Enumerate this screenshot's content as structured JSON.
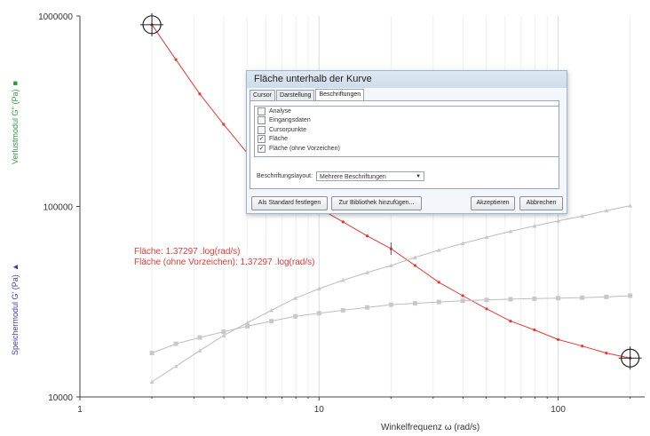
{
  "chart_data": {
    "type": "line",
    "x_scale": "log",
    "y_scale": "log",
    "xlim": [
      1,
      230
    ],
    "ylim": [
      10000,
      1000000
    ],
    "x_ticks": [
      "1",
      "10",
      "100"
    ],
    "y_ticks": [
      "1000000",
      "100000",
      "10000"
    ],
    "xlabel": "Winkelfrequenz  ω  (rad/s)",
    "ylabel_left_top": "Verlustmodul  G''  (Pa)",
    "ylabel_left_bottom": "Speichermodul  G'  (Pa)",
    "grid": "vertical",
    "series": [
      {
        "color": "#e53935",
        "x": [
          2,
          2.52,
          3.17,
          3.99,
          5.02,
          6.32,
          7.96,
          10,
          12.6,
          15.9,
          20,
          25.2,
          31.7,
          39.9,
          50.2,
          63.2,
          79.6,
          100,
          126,
          159,
          200
        ],
        "y": [
          900000,
          590000,
          390000,
          270000,
          190000,
          148000,
          118000,
          98000,
          83000,
          70000,
          60000,
          49000,
          40000,
          34000,
          29000,
          25000,
          22500,
          20000,
          18500,
          17000,
          16000
        ]
      },
      {
        "color": "#bdbdbd",
        "x": [
          2,
          2.52,
          3.17,
          3.99,
          5.02,
          6.32,
          7.96,
          10,
          12.6,
          15.9,
          20,
          25.2,
          31.7,
          39.9,
          50.2,
          63.2,
          79.6,
          100,
          126,
          159,
          200
        ],
        "y": [
          12000,
          14500,
          17500,
          21000,
          24500,
          28500,
          33000,
          37000,
          41000,
          45000,
          49000,
          54000,
          59000,
          64000,
          69000,
          74000,
          79000,
          84000,
          89000,
          95000,
          101000
        ]
      },
      {
        "color": "#bdbdbd",
        "x": [
          2,
          2.52,
          3.17,
          3.99,
          5.02,
          6.32,
          7.96,
          10,
          12.6,
          15.9,
          20,
          25.2,
          31.7,
          39.9,
          50.2,
          63.2,
          79.6,
          100,
          126,
          159,
          200
        ],
        "y": [
          17000,
          19000,
          20500,
          22000,
          23500,
          25000,
          26500,
          27500,
          28500,
          29500,
          30500,
          31000,
          31500,
          32000,
          32300,
          32600,
          32800,
          33000,
          33200,
          33500,
          34000
        ]
      }
    ],
    "cursors": [
      {
        "x": 2,
        "y": 900000
      },
      {
        "x": 200,
        "y": 16000
      }
    ],
    "annotations": [
      "Fläche: 1.37297 .log(rad/s)",
      "Fläche (ohne Vorzeichen): 1.37297 .log(rad/s)"
    ]
  },
  "labels": {
    "verlust_symbol": "■",
    "speicher_symbol": "▲",
    "verlust_color": "#2e9a3a",
    "speicher_color": "#3b3fa8"
  },
  "dialog": {
    "title": "Fläche unterhalb der Kurve",
    "tabs": [
      "Cursor",
      "Darstellung",
      "Beschriftungen"
    ],
    "active_tab": "Beschriftungen",
    "checkboxes": [
      {
        "label": "Analyse",
        "checked": false
      },
      {
        "label": "Eingangsdaten",
        "checked": false
      },
      {
        "label": "Cursorpunkte",
        "checked": false
      },
      {
        "label": "Fläche",
        "checked": true
      },
      {
        "label": "Fläche (ohne Vorzeichen)",
        "checked": true
      }
    ],
    "layout_label": "Beschriftungslayout:",
    "layout_value": "Mehrere Beschriftungen",
    "buttons": {
      "set_default": "Als Standard festlegen",
      "add_library": "Zur Bibliothek hinzufügen...",
      "accept": "Akzeptieren",
      "cancel": "Abbrechen"
    }
  }
}
